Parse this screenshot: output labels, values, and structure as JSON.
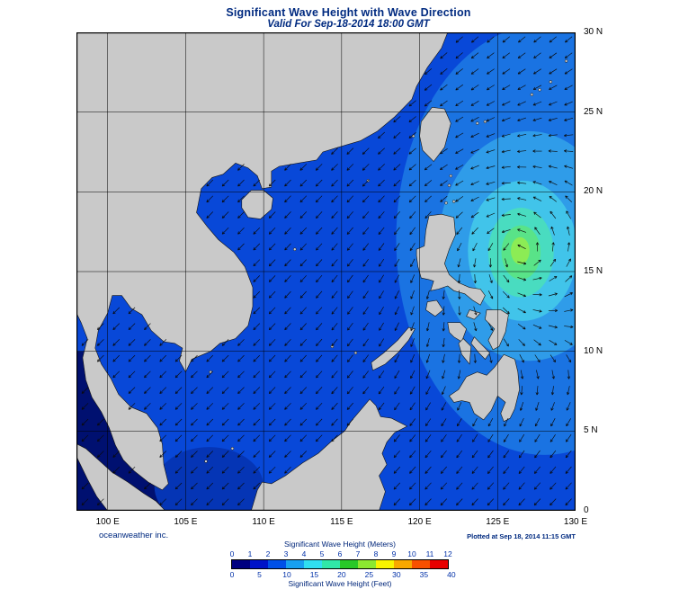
{
  "header": {
    "title": "Significant Wave Height with Wave Direction",
    "subtitle": "Valid For Sep-18-2014 18:00 GMT"
  },
  "footer": {
    "credit": "oceanweather inc.",
    "plotted": "Plotted at Sep 18, 2014 11:15 GMT"
  },
  "axes": {
    "lon_range": [
      98,
      130
    ],
    "lat_range": [
      0,
      30
    ],
    "lon_ticks": [
      {
        "v": 100,
        "label": "100 E"
      },
      {
        "v": 105,
        "label": "105 E"
      },
      {
        "v": 110,
        "label": "110 E"
      },
      {
        "v": 115,
        "label": "115 E"
      },
      {
        "v": 120,
        "label": "120 E"
      },
      {
        "v": 125,
        "label": "125 E"
      },
      {
        "v": 130,
        "label": "130 E"
      }
    ],
    "lat_ticks": [
      {
        "v": 0,
        "label": "0"
      },
      {
        "v": 5,
        "label": "5 N"
      },
      {
        "v": 10,
        "label": "10 N"
      },
      {
        "v": 15,
        "label": "15 N"
      },
      {
        "v": 20,
        "label": "20 N"
      },
      {
        "v": 25,
        "label": "25 N"
      },
      {
        "v": 30,
        "label": "30 N"
      }
    ]
  },
  "legend": {
    "meters_title": "Significant Wave Height (Meters)",
    "feet_title": "Significant Wave Height (Feet)",
    "meters_ticks": [
      0,
      1,
      2,
      3,
      4,
      5,
      6,
      7,
      8,
      9,
      10,
      11,
      12
    ],
    "feet_ticks": [
      0,
      5,
      10,
      15,
      20,
      25,
      30,
      35,
      40
    ],
    "meters_per_foot": 0.3048,
    "colors": [
      "#000080",
      "#0013c8",
      "#0050e8",
      "#18a0f0",
      "#30dff0",
      "#30e8a8",
      "#28c828",
      "#8ce830",
      "#f8f400",
      "#f8a800",
      "#f85000",
      "#e80000"
    ]
  },
  "map": {
    "sea_color": "#0848d8",
    "land_color": "#c9c9c9",
    "coast_color": "#141414",
    "grid_color": "#000000",
    "border_color": "#000000",
    "arrow_color": "#0a0a0a",
    "background_dir_deg": 225,
    "typhoon": {
      "lon": 126.5,
      "lat": 16.2,
      "influence_deg": 9
    },
    "patches": [
      {
        "name": "calm-malacca",
        "color": "#001070",
        "poly": [
          [
            98,
            10
          ],
          [
            99.3,
            10
          ],
          [
            99,
            8
          ],
          [
            100.2,
            6.2
          ],
          [
            101.8,
            4
          ],
          [
            103.2,
            2.2
          ],
          [
            104,
            0.5
          ],
          [
            104.2,
            0
          ],
          [
            98,
            0
          ]
        ]
      },
      {
        "name": "low-karimata",
        "color": "#0535b5",
        "ellipse": [
          106.5,
          1.5,
          3.5,
          2.5
        ]
      }
    ],
    "rings": [
      {
        "color": "#1a73e2",
        "ellipse": [
          128,
          17,
          9.5,
          13.5
        ]
      },
      {
        "color": "#2f9ce9",
        "ellipse": [
          127,
          16.6,
          5.8,
          7.2
        ]
      },
      {
        "color": "#41c4ea",
        "ellipse": [
          126.6,
          16.3,
          3.5,
          4.4
        ]
      },
      {
        "color": "#49dcc0",
        "ellipse": [
          126.5,
          16.2,
          2.1,
          2.8
        ]
      },
      {
        "color": "#59e388",
        "ellipse": [
          126.5,
          16.2,
          1.25,
          1.7
        ]
      },
      {
        "color": "#8cec55",
        "ellipse": [
          126.45,
          16.3,
          0.6,
          0.85
        ]
      }
    ],
    "land": [
      {
        "name": "mainland-asia",
        "pts": [
          [
            98,
            30
          ],
          [
            121.8,
            30
          ],
          [
            121.4,
            29
          ],
          [
            120.5,
            27.8
          ],
          [
            119.8,
            26.6
          ],
          [
            119.5,
            25.8
          ],
          [
            118.4,
            24.7
          ],
          [
            117.3,
            23.8
          ],
          [
            116.2,
            23.2
          ],
          [
            114.8,
            22.8
          ],
          [
            113.8,
            22.5
          ],
          [
            113.4,
            22
          ],
          [
            112.2,
            21.8
          ],
          [
            111,
            21.6
          ],
          [
            110.5,
            21.3
          ],
          [
            110.5,
            20.3
          ],
          [
            109.9,
            20.2
          ],
          [
            109.6,
            21
          ],
          [
            109,
            21.5
          ],
          [
            108.2,
            21.8
          ],
          [
            107.4,
            21.1
          ],
          [
            106.7,
            20.9
          ],
          [
            106,
            20.2
          ],
          [
            105.8,
            19.2
          ],
          [
            105.7,
            18.7
          ],
          [
            106.4,
            17.8
          ],
          [
            107.1,
            17
          ],
          [
            108.1,
            16.2
          ],
          [
            108.8,
            15.3
          ],
          [
            109.3,
            14
          ],
          [
            109.3,
            12.8
          ],
          [
            109,
            11.6
          ],
          [
            108.2,
            10.8
          ],
          [
            107.2,
            10.5
          ],
          [
            106.6,
            10
          ],
          [
            105.4,
            9.5
          ],
          [
            105,
            8.7
          ],
          [
            104.6,
            9.4
          ],
          [
            104.8,
            10.2
          ],
          [
            104.3,
            10.5
          ],
          [
            103.6,
            10.6
          ],
          [
            102.8,
            11.3
          ],
          [
            102.2,
            12.3
          ],
          [
            101.5,
            12.7
          ],
          [
            100.9,
            13.5
          ],
          [
            100.3,
            13.5
          ],
          [
            100,
            12.4
          ],
          [
            99.4,
            11.3
          ],
          [
            99.2,
            10.2
          ],
          [
            99.6,
            9.2
          ],
          [
            100.2,
            8.3
          ],
          [
            100.7,
            7.3
          ],
          [
            101.5,
            6.5
          ],
          [
            102.5,
            6.1
          ],
          [
            103.2,
            5.2
          ],
          [
            103.5,
            4.2
          ],
          [
            103.6,
            2.9
          ],
          [
            103.9,
            1.7
          ],
          [
            103.5,
            1.3
          ],
          [
            102.6,
            1.8
          ],
          [
            101.7,
            2.5
          ],
          [
            101,
            3.2
          ],
          [
            100.5,
            4.1
          ],
          [
            100.1,
            5.2
          ],
          [
            99.6,
            6.2
          ],
          [
            99,
            7.1
          ],
          [
            98.6,
            8.2
          ],
          [
            98.4,
            9.6
          ],
          [
            98.7,
            10.8
          ],
          [
            98.3,
            11.8
          ],
          [
            98,
            12.4
          ]
        ]
      },
      {
        "name": "hainan",
        "pts": [
          [
            108.6,
            19.5
          ],
          [
            109.2,
            20.1
          ],
          [
            110,
            20.1
          ],
          [
            110.6,
            19.6
          ],
          [
            110.5,
            18.9
          ],
          [
            109.8,
            18.3
          ],
          [
            109,
            18.4
          ],
          [
            108.6,
            19
          ]
        ]
      },
      {
        "name": "taiwan",
        "pts": [
          [
            120,
            23.5
          ],
          [
            120.2,
            22.6
          ],
          [
            120.9,
            21.9
          ],
          [
            121.6,
            22.8
          ],
          [
            122,
            24.3
          ],
          [
            121.6,
            25.2
          ],
          [
            120.8,
            25.3
          ],
          [
            120.1,
            24.4
          ]
        ]
      },
      {
        "name": "luzon",
        "pts": [
          [
            119.8,
            16.4
          ],
          [
            120.3,
            16.6
          ],
          [
            120.4,
            17.6
          ],
          [
            120.6,
            18.5
          ],
          [
            121.4,
            18.6
          ],
          [
            122.2,
            18.4
          ],
          [
            122.3,
            17.3
          ],
          [
            121.9,
            16.4
          ],
          [
            121.6,
            15.5
          ],
          [
            121.9,
            14.8
          ],
          [
            122.5,
            14.3
          ],
          [
            123.2,
            14
          ],
          [
            123.9,
            13.9
          ],
          [
            124.2,
            13.5
          ],
          [
            123.9,
            12.9
          ],
          [
            123.4,
            13.2
          ],
          [
            122.9,
            13.6
          ],
          [
            122.2,
            13.8
          ],
          [
            121.8,
            14.1
          ],
          [
            121.2,
            13.9
          ],
          [
            120.7,
            13.8
          ],
          [
            120.9,
            14.4
          ],
          [
            120.6,
            14.5
          ],
          [
            120.1,
            14.6
          ],
          [
            119.9,
            15.3
          ],
          [
            119.8,
            16
          ]
        ]
      },
      {
        "name": "mindoro",
        "pts": [
          [
            120.5,
            13.1
          ],
          [
            121.1,
            13.2
          ],
          [
            121.5,
            12.6
          ],
          [
            121,
            12.2
          ],
          [
            120.4,
            12.6
          ]
        ]
      },
      {
        "name": "palawan",
        "pts": [
          [
            117,
            8.8
          ],
          [
            117.8,
            9.2
          ],
          [
            118.6,
            9.9
          ],
          [
            119.3,
            10.7
          ],
          [
            119.7,
            11.4
          ],
          [
            119.3,
            11.5
          ],
          [
            118.6,
            10.7
          ],
          [
            117.7,
            9.9
          ],
          [
            116.9,
            9.3
          ]
        ]
      },
      {
        "name": "panay",
        "pts": [
          [
            121.8,
            11.8
          ],
          [
            122.6,
            11.8
          ],
          [
            123,
            11.4
          ],
          [
            122.7,
            10.6
          ],
          [
            122.2,
            10.9
          ],
          [
            121.9,
            11.2
          ]
        ]
      },
      {
        "name": "negros",
        "pts": [
          [
            122.8,
            10.8
          ],
          [
            123.3,
            10.3
          ],
          [
            123.2,
            9.2
          ],
          [
            122.7,
            9.8
          ],
          [
            122.5,
            10.5
          ]
        ]
      },
      {
        "name": "cebu-bohol",
        "pts": [
          [
            123.5,
            10.9
          ],
          [
            124,
            10.4
          ],
          [
            124.5,
            9.9
          ],
          [
            124.2,
            9.5
          ],
          [
            123.8,
            9.9
          ],
          [
            123.3,
            10.5
          ]
        ]
      },
      {
        "name": "samar-leyte",
        "pts": [
          [
            124.3,
            12.6
          ],
          [
            125.2,
            12.6
          ],
          [
            125.7,
            12.3
          ],
          [
            125.5,
            11.2
          ],
          [
            125.1,
            10.3
          ],
          [
            124.7,
            10.1
          ],
          [
            124.4,
            10.7
          ],
          [
            124.8,
            11.4
          ],
          [
            124.2,
            12
          ]
        ]
      },
      {
        "name": "masbate",
        "pts": [
          [
            123.2,
            12.6
          ],
          [
            123.9,
            12.4
          ],
          [
            123.5,
            12
          ],
          [
            123,
            12.2
          ]
        ]
      },
      {
        "name": "mindanao",
        "pts": [
          [
            121.9,
            7.2
          ],
          [
            122.5,
            7.6
          ],
          [
            123,
            8.4
          ],
          [
            123.7,
            8.7
          ],
          [
            124.3,
            8.5
          ],
          [
            124.8,
            9
          ],
          [
            125.4,
            9.8
          ],
          [
            126.1,
            9.5
          ],
          [
            126.3,
            8.7
          ],
          [
            126.4,
            7.6
          ],
          [
            126.1,
            6.4
          ],
          [
            125.8,
            5.8
          ],
          [
            125.4,
            5.6
          ],
          [
            125.2,
            6.1
          ],
          [
            125.5,
            6.8
          ],
          [
            125,
            7.2
          ],
          [
            124.6,
            6.3
          ],
          [
            124.1,
            5.7
          ],
          [
            123.5,
            6.1
          ],
          [
            123.2,
            6.8
          ],
          [
            122.7,
            6.9
          ],
          [
            122.2,
            6.8
          ]
        ]
      },
      {
        "name": "borneo",
        "pts": [
          [
            109.2,
            0
          ],
          [
            109.6,
            1.3
          ],
          [
            109.9,
            1.8
          ],
          [
            110.5,
            1.7
          ],
          [
            111.4,
            2.2
          ],
          [
            112.5,
            3
          ],
          [
            113.5,
            3.6
          ],
          [
            114.4,
            4.4
          ],
          [
            115.2,
            5
          ],
          [
            115.6,
            5.6
          ],
          [
            116.2,
            6.3
          ],
          [
            116.8,
            7
          ],
          [
            117.2,
            6.6
          ],
          [
            117.5,
            5.9
          ],
          [
            118.2,
            5.8
          ],
          [
            119.2,
            5.3
          ],
          [
            118.4,
            4.9
          ],
          [
            117.9,
            4.3
          ],
          [
            117.6,
            3.6
          ],
          [
            117.9,
            2.9
          ],
          [
            117.4,
            2.2
          ],
          [
            117.8,
            1.2
          ],
          [
            117.5,
            0.3
          ],
          [
            117.4,
            0
          ]
        ]
      },
      {
        "name": "sumatra",
        "pts": [
          [
            98,
            4.2
          ],
          [
            98.6,
            3.9
          ],
          [
            99.4,
            3.2
          ],
          [
            100.3,
            2.4
          ],
          [
            101.3,
            1.8
          ],
          [
            102.3,
            1.1
          ],
          [
            103.1,
            0.6
          ],
          [
            103.7,
            0
          ],
          [
            100,
            0
          ],
          [
            99.3,
            0.9
          ],
          [
            98.7,
            2
          ],
          [
            98.2,
            3
          ],
          [
            98,
            3.4
          ]
        ]
      }
    ],
    "island_dots": [
      [
        108,
        3.9
      ],
      [
        106.3,
        3.1
      ],
      [
        112,
        16.4
      ],
      [
        114.4,
        10.3
      ],
      [
        115.9,
        9.9
      ],
      [
        116.7,
        20.7
      ],
      [
        121.9,
        20.4
      ],
      [
        122,
        21
      ],
      [
        121.7,
        19.3
      ],
      [
        122.2,
        19.4
      ],
      [
        127.7,
        26.4
      ],
      [
        128.4,
        26.9
      ],
      [
        129.4,
        28.2
      ],
      [
        127.2,
        26.1
      ],
      [
        124.2,
        24.4
      ],
      [
        123.7,
        24.3
      ],
      [
        119.6,
        23.5
      ],
      [
        106.6,
        8.7
      ]
    ]
  },
  "chart_data": {
    "type": "heatmap",
    "title": "Significant Wave Height with Wave Direction",
    "valid_time": "Sep-18-2014 18:00 GMT",
    "plotted_time": "Sep 18, 2014 11:15 GMT",
    "lon_range_deg_e": [
      98,
      130
    ],
    "lat_range_deg_n": [
      0,
      30
    ],
    "scale_meters": [
      0,
      1,
      2,
      3,
      4,
      5,
      6,
      7,
      8,
      9,
      10,
      11,
      12
    ],
    "scale_feet": [
      0,
      5,
      10,
      15,
      20,
      25,
      30,
      35,
      40
    ],
    "storm_center": {
      "lon_e": 126.5,
      "lat_n": 16.2
    },
    "max_wave_height_m_approx": 8,
    "legend_position": "bottom-center",
    "grid": true
  }
}
